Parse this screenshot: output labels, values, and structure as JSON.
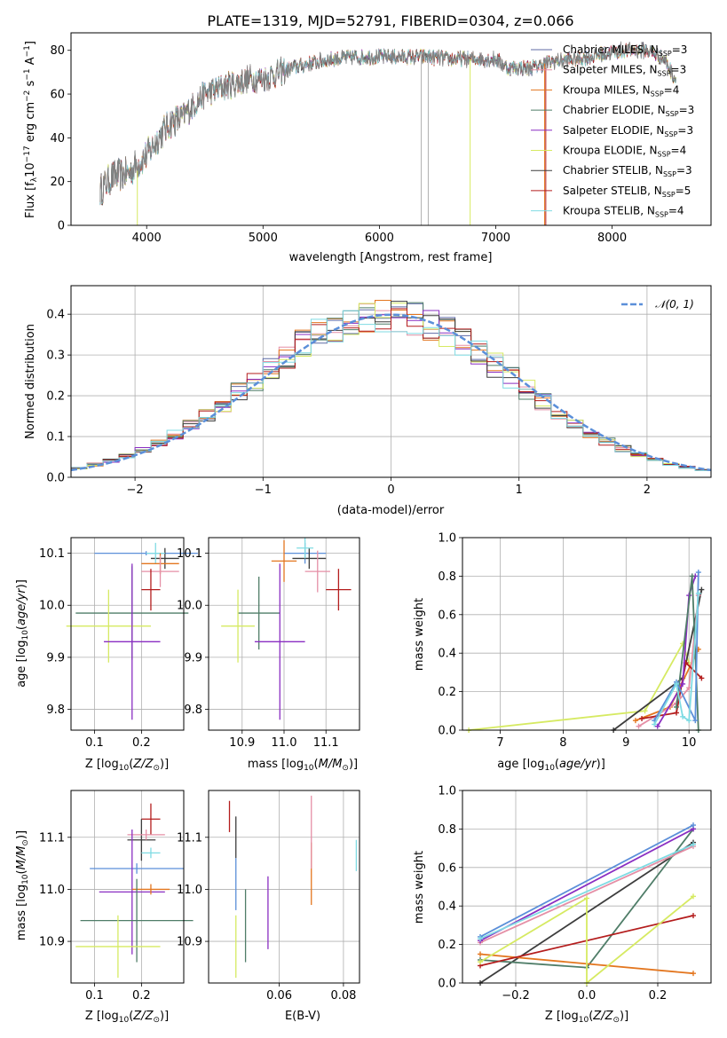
{
  "chart_data": [
    {
      "type": "line",
      "title": "PLATE=1319, MJD=52791, FIBERID=0304, z=0.066",
      "xlabel": "wavelength [Angstrom, rest frame]",
      "ylabel": "Flux [f_λ 10^-17 erg cm^-2 s^-1 A^-1]",
      "xlim": [
        3350,
        8850
      ],
      "ylim": [
        0,
        88
      ],
      "xticks": [
        "4000",
        "5000",
        "6000",
        "7000",
        "8000"
      ],
      "yticks": [
        "0",
        "20",
        "40",
        "60",
        "80"
      ],
      "grid": false,
      "legend_position": "top-right",
      "data_range": [
        3600,
        8550
      ],
      "continuum": {
        "x": [
          3600,
          3700,
          3850,
          3920,
          4000,
          4100,
          4200,
          4300,
          4400,
          4500,
          4700,
          4900,
          5000,
          5100,
          5200,
          5400,
          5600,
          5800,
          6000,
          6200,
          6400,
          6600,
          6800,
          7000,
          7100,
          7300,
          7500,
          7700,
          7900,
          8100,
          8300,
          8450,
          8550
        ],
        "y": [
          16,
          22,
          24,
          28,
          32,
          40,
          47,
          49,
          55,
          60,
          64,
          67,
          67,
          69,
          71,
          74,
          76,
          77,
          77,
          77,
          77,
          76,
          76,
          76,
          72,
          72,
          75,
          76,
          78,
          80,
          80,
          76,
          66
        ]
      },
      "series": [
        {
          "name": "Chabrier MILES, N_SSP=3",
          "color": "#5f6ba6"
        },
        {
          "name": "Salpeter MILES, N_SSP=3",
          "color": "#e58fa6"
        },
        {
          "name": "Kroupa MILES, N_SSP=4",
          "color": "#e3761f"
        },
        {
          "name": "Chabrier ELODIE, N_SSP=3",
          "color": "#4f7d68"
        },
        {
          "name": "Salpeter ELODIE, N_SSP=3",
          "color": "#8a2ec2"
        },
        {
          "name": "Kroupa ELODIE, N_SSP=4",
          "color": "#d6ea62"
        },
        {
          "name": "Chabrier STELIB, N_SSP=3",
          "color": "#3d3d3d"
        },
        {
          "name": "Salpeter STELIB, N_SSP=5",
          "color": "#b41d1d"
        },
        {
          "name": "Kroupa STELIB, N_SSP=4",
          "color": "#7fdbe3"
        }
      ],
      "data_line": {
        "color": "#7f7f7f"
      }
    },
    {
      "type": "bar",
      "xlabel": "(data-model)/error",
      "ylabel": "Normed distribution",
      "xlim": [
        -2.5,
        2.5
      ],
      "ylim": [
        0,
        0.47
      ],
      "xticks": [
        "−2",
        "−1",
        "0",
        "1",
        "2"
      ],
      "yticks": [
        "0.0",
        "0.1",
        "0.2",
        "0.3",
        "0.4"
      ],
      "grid": true,
      "legend_position": "top-right",
      "reference_curve": {
        "name": "𝒩(0, 1)",
        "color": "#5b8fd9",
        "mean": 0,
        "sigma": 1
      },
      "bins": 40,
      "series_colors": [
        "#5f6ba6",
        "#e58fa6",
        "#e3761f",
        "#4f7d68",
        "#8a2ec2",
        "#d6ea62",
        "#3d3d3d",
        "#b41d1d",
        "#7fdbe3"
      ]
    },
    {
      "type": "scatter",
      "xlabel": "Z [log10(Z/Z⊙)]",
      "ylabel": "age  [log10(age/yr)]",
      "xlim": [
        0.05,
        0.29
      ],
      "ylim": [
        9.76,
        10.13
      ],
      "xticks": [
        "0.1",
        "0.2"
      ],
      "yticks": [
        "9.8",
        "9.9",
        "10.0",
        "10.1"
      ],
      "grid": true,
      "points": [
        {
          "x": 0.21,
          "y": 10.1,
          "xerr": 0.11,
          "yerr": 0.004,
          "color": "#5b8fd9"
        },
        {
          "x": 0.25,
          "y": 10.09,
          "xerr": 0.03,
          "yerr": 0.02,
          "color": "#3d3d3d"
        },
        {
          "x": 0.23,
          "y": 10.1,
          "xerr": 0.02,
          "yerr": 0.02,
          "color": "#7fdbe3"
        },
        {
          "x": 0.24,
          "y": 10.08,
          "xerr": 0.04,
          "yerr": 0.02,
          "color": "#e3761f"
        },
        {
          "x": 0.24,
          "y": 10.065,
          "xerr": 0.04,
          "yerr": 0.03,
          "color": "#e58fa6"
        },
        {
          "x": 0.22,
          "y": 10.03,
          "xerr": 0.02,
          "yerr": 0.04,
          "color": "#b41d1d"
        },
        {
          "x": 0.18,
          "y": 9.985,
          "xerr": 0.12,
          "yerr": 0.09,
          "color": "#4f7d68"
        },
        {
          "x": 0.13,
          "y": 9.96,
          "xerr": 0.09,
          "yerr": 0.07,
          "color": "#d6ea62"
        },
        {
          "x": 0.18,
          "y": 9.93,
          "xerr": 0.06,
          "yerr": 0.15,
          "color": "#8a2ec2"
        }
      ]
    },
    {
      "type": "scatter",
      "xlabel": "mass [log10(M/M⊙)]",
      "ylabel": "",
      "xlim": [
        10.82,
        11.18
      ],
      "ylim": [
        9.76,
        10.13
      ],
      "xticks": [
        "10.9",
        "11.0",
        "11.1"
      ],
      "yticks": [
        "9.8",
        "9.9",
        "10.0",
        "10.1"
      ],
      "grid": true,
      "points": [
        {
          "x": 11.05,
          "y": 10.1,
          "xerr": 0.05,
          "yerr": 0.02,
          "color": "#5b8fd9"
        },
        {
          "x": 11.06,
          "y": 10.09,
          "xerr": 0.04,
          "yerr": 0.02,
          "color": "#3d3d3d"
        },
        {
          "x": 11.05,
          "y": 10.11,
          "xerr": 0.02,
          "yerr": 0.02,
          "color": "#7fdbe3"
        },
        {
          "x": 11.0,
          "y": 10.085,
          "xerr": 0.03,
          "yerr": 0.04,
          "color": "#e3761f"
        },
        {
          "x": 11.08,
          "y": 10.065,
          "xerr": 0.03,
          "yerr": 0.04,
          "color": "#e58fa6"
        },
        {
          "x": 11.13,
          "y": 10.03,
          "xerr": 0.03,
          "yerr": 0.04,
          "color": "#b41d1d"
        },
        {
          "x": 10.94,
          "y": 9.985,
          "xerr": 0.05,
          "yerr": 0.07,
          "color": "#4f7d68"
        },
        {
          "x": 10.89,
          "y": 9.96,
          "xerr": 0.04,
          "yerr": 0.07,
          "color": "#d6ea62"
        },
        {
          "x": 10.99,
          "y": 9.93,
          "xerr": 0.06,
          "yerr": 0.15,
          "color": "#8a2ec2"
        }
      ]
    },
    {
      "type": "line",
      "xlabel": "age  [log10(age/yr)]",
      "ylabel": "mass weight",
      "xlim": [
        6.4,
        10.35
      ],
      "ylim": [
        0,
        1.0
      ],
      "xticks": [
        "7",
        "8",
        "9",
        "10"
      ],
      "yticks": [
        "0.0",
        "0.2",
        "0.4",
        "0.6",
        "0.8",
        "1.0"
      ],
      "grid": true,
      "series": [
        {
          "color": "#d6ea62",
          "x": [
            6.5,
            9.3,
            9.9,
            10.0
          ],
          "y": [
            0.0,
            0.1,
            0.45,
            0.35
          ]
        },
        {
          "color": "#3d3d3d",
          "x": [
            8.8,
            9.9,
            10.2
          ],
          "y": [
            0.0,
            0.27,
            0.73
          ]
        },
        {
          "color": "#e3761f",
          "x": [
            9.15,
            9.7,
            10.15
          ],
          "y": [
            0.05,
            0.12,
            0.42
          ]
        },
        {
          "color": "#e58fa6",
          "x": [
            9.2,
            9.8,
            10.0,
            10.15
          ],
          "y": [
            0.02,
            0.14,
            0.22,
            0.7
          ]
        },
        {
          "color": "#b41d1d",
          "x": [
            9.25,
            9.8,
            9.95,
            10.2
          ],
          "y": [
            0.06,
            0.09,
            0.35,
            0.27
          ]
        },
        {
          "color": "#8a2ec2",
          "x": [
            9.5,
            9.9,
            10.0,
            10.1
          ],
          "y": [
            0.02,
            0.24,
            0.7,
            0.8
          ]
        },
        {
          "color": "#4f7d68",
          "x": [
            9.8,
            10.05,
            10.15
          ],
          "y": [
            0.12,
            0.8,
            0.0
          ]
        },
        {
          "color": "#5b8fd9",
          "x": [
            9.45,
            9.8,
            10.1,
            10.15
          ],
          "y": [
            0.05,
            0.25,
            0.05,
            0.82
          ]
        },
        {
          "color": "#7fdbe3",
          "x": [
            9.45,
            9.8,
            9.9,
            10.0,
            10.15
          ],
          "y": [
            0.03,
            0.24,
            0.07,
            0.05,
            0.71
          ]
        }
      ]
    },
    {
      "type": "scatter",
      "xlabel": "Z [log10(Z/Z⊙)]",
      "ylabel": "mass [log10(M/M⊙)]",
      "xlim": [
        0.05,
        0.29
      ],
      "ylim": [
        10.82,
        11.19
      ],
      "xticks": [
        "0.1",
        "0.2"
      ],
      "yticks": [
        "10.9",
        "11.0",
        "11.1"
      ],
      "grid": true,
      "points": [
        {
          "x": 0.22,
          "y": 11.135,
          "xerr": 0.02,
          "yerr": 0.03,
          "color": "#b41d1d"
        },
        {
          "x": 0.2,
          "y": 11.095,
          "xerr": 0.03,
          "yerr": 0.04,
          "color": "#3d3d3d"
        },
        {
          "x": 0.21,
          "y": 11.105,
          "xerr": 0.04,
          "yerr": 0.01,
          "color": "#e58fa6"
        },
        {
          "x": 0.22,
          "y": 11.07,
          "xerr": 0.02,
          "yerr": 0.01,
          "color": "#7fdbe3"
        },
        {
          "x": 0.19,
          "y": 11.04,
          "xerr": 0.1,
          "yerr": 0.01,
          "color": "#5b8fd9"
        },
        {
          "x": 0.18,
          "y": 10.995,
          "xerr": 0.07,
          "yerr": 0.12,
          "color": "#8a2ec2"
        },
        {
          "x": 0.22,
          "y": 11.0,
          "xerr": 0.04,
          "yerr": 0.01,
          "color": "#e3761f"
        },
        {
          "x": 0.19,
          "y": 10.94,
          "xerr": 0.12,
          "yerr": 0.08,
          "color": "#4f7d68"
        },
        {
          "x": 0.15,
          "y": 10.89,
          "xerr": 0.09,
          "yerr": 0.06,
          "color": "#d6ea62"
        }
      ]
    },
    {
      "type": "scatter",
      "xlabel": "E(B-V)",
      "ylabel": "",
      "xlim": [
        0.038,
        0.085
      ],
      "ylim": [
        10.82,
        11.19
      ],
      "xticks": [
        "0.06",
        "0.08"
      ],
      "yticks": [
        "10.9",
        "11.0",
        "11.1"
      ],
      "grid": true,
      "points": [
        {
          "x": 0.0445,
          "y": 11.14,
          "yerr": 0.03,
          "color": "#b41d1d"
        },
        {
          "x": 0.0465,
          "y": 11.1,
          "yerr": 0.04,
          "color": "#3d3d3d"
        },
        {
          "x": 0.0465,
          "y": 11.01,
          "yerr": 0.05,
          "color": "#5b8fd9"
        },
        {
          "x": 0.0465,
          "y": 10.89,
          "yerr": 0.06,
          "color": "#d6ea62"
        },
        {
          "x": 0.0495,
          "y": 10.93,
          "yerr": 0.07,
          "color": "#4f7d68"
        },
        {
          "x": 0.0565,
          "y": 10.955,
          "yerr": 0.07,
          "color": "#8a2ec2"
        },
        {
          "x": 0.07,
          "y": 11.03,
          "yerr": 0.06,
          "color": "#e3761f"
        },
        {
          "x": 0.07,
          "y": 11.11,
          "yerr": 0.07,
          "color": "#e58fa6"
        },
        {
          "x": 0.084,
          "y": 11.065,
          "yerr": 0.03,
          "color": "#7fdbe3"
        }
      ]
    },
    {
      "type": "line",
      "xlabel": "Z [log10(Z/Z⊙)]",
      "ylabel": "mass weight",
      "xlim": [
        -0.35,
        0.35
      ],
      "ylim": [
        0,
        1.0
      ],
      "xticks": [
        "−0.2",
        "0.0",
        "0.2"
      ],
      "yticks": [
        "0.0",
        "0.2",
        "0.4",
        "0.6",
        "0.8",
        "1.0"
      ],
      "grid": true,
      "series": [
        {
          "color": "#3d3d3d",
          "x": [
            -0.3,
            0.3
          ],
          "y": [
            0.0,
            0.73
          ]
        },
        {
          "color": "#4f7d68",
          "x": [
            -0.3,
            0.0,
            0.3
          ],
          "y": [
            0.12,
            0.08,
            0.8
          ]
        },
        {
          "color": "#e3761f",
          "x": [
            -0.3,
            0.3
          ],
          "y": [
            0.15,
            0.05
          ]
        },
        {
          "color": "#b41d1d",
          "x": [
            -0.3,
            0.3
          ],
          "y": [
            0.09,
            0.35
          ]
        },
        {
          "color": "#d6ea62",
          "x": [
            -0.3,
            0.0,
            0.0,
            0.3
          ],
          "y": [
            0.11,
            0.44,
            0.0,
            0.45
          ]
        },
        {
          "color": "#e58fa6",
          "x": [
            -0.3,
            0.3
          ],
          "y": [
            0.21,
            0.71
          ]
        },
        {
          "color": "#8a2ec2",
          "x": [
            -0.3,
            0.3
          ],
          "y": [
            0.22,
            0.8
          ]
        },
        {
          "color": "#5b8fd9",
          "x": [
            -0.3,
            0.3
          ],
          "y": [
            0.24,
            0.82
          ]
        },
        {
          "color": "#7fdbe3",
          "x": [
            -0.3,
            0.3
          ],
          "y": [
            0.23,
            0.72
          ]
        }
      ]
    }
  ]
}
